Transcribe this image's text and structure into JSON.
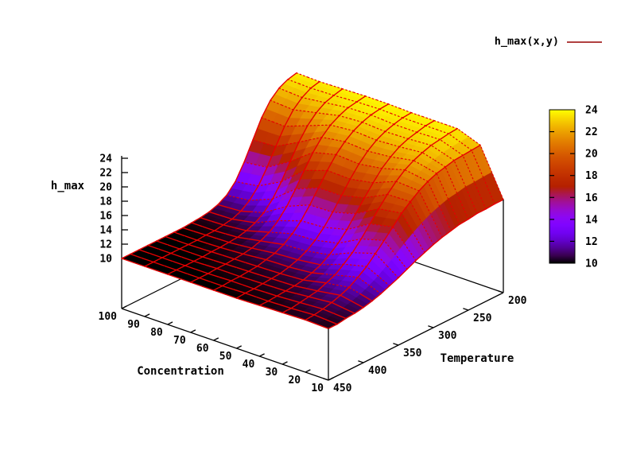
{
  "chart_data": {
    "type": "surface3d",
    "title": "",
    "legend_label": "h_max(x,y)",
    "xlabel": "Concentration",
    "ylabel": "Temperature",
    "zlabel": "h_max",
    "x_range": [
      10,
      100
    ],
    "y_range": [
      200,
      450
    ],
    "z_range": [
      10,
      24
    ],
    "x_ticks": [
      100,
      90,
      80,
      70,
      60,
      50,
      40,
      30,
      20,
      10
    ],
    "y_ticks": [
      450,
      400,
      350,
      300,
      250,
      200
    ],
    "z_ticks": [
      10,
      12,
      14,
      16,
      18,
      20,
      22,
      24
    ],
    "colorbar": {
      "min": 10,
      "max": 24,
      "ticks": [
        10,
        12,
        14,
        16,
        18,
        20,
        22,
        24
      ],
      "palette": "pm3d rgbformulae 7,5,15 (black-purple-violet-red-orange-yellow)"
    },
    "grid": {
      "concentration": [
        10,
        20,
        30,
        40,
        50,
        60,
        70,
        80,
        90,
        100
      ],
      "temperature": [
        200,
        212.5,
        225,
        237.5,
        250,
        262.5,
        275,
        287.5,
        300,
        312.5,
        325,
        337.5,
        350,
        362.5,
        375,
        387.5,
        400,
        412.5,
        425,
        437.5,
        450
      ],
      "h_max_values": [
        [
          16.0,
          16.0,
          15.9,
          15.9,
          15.7,
          15.6,
          15.3,
          15.0,
          14.6,
          14.1,
          13.6,
          13.0,
          12.4,
          11.9,
          11.4,
          11.0,
          10.7,
          10.5,
          10.4,
          10.2,
          10.2
        ],
        [
          22.5,
          22.4,
          22.3,
          22.2,
          21.9,
          21.6,
          21.1,
          20.4,
          19.5,
          18.5,
          17.2,
          15.9,
          14.7,
          13.5,
          12.6,
          11.8,
          11.3,
          10.9,
          10.6,
          10.4,
          10.3
        ],
        [
          23.7,
          23.6,
          23.4,
          23.2,
          22.8,
          22.3,
          21.6,
          20.6,
          19.4,
          18.0,
          16.5,
          15.0,
          13.7,
          12.7,
          11.8,
          11.3,
          10.8,
          10.6,
          10.4,
          10.2,
          10.2
        ],
        [
          23.7,
          23.6,
          23.3,
          23.0,
          22.5,
          21.7,
          20.7,
          19.3,
          17.8,
          16.2,
          14.6,
          13.3,
          12.3,
          11.5,
          11.0,
          10.6,
          10.4,
          10.3,
          10.2,
          10.1,
          10.1
        ],
        [
          23.7,
          23.6,
          23.3,
          22.9,
          22.3,
          21.4,
          20.2,
          18.7,
          17.0,
          15.3,
          13.8,
          12.6,
          11.7,
          11.1,
          10.7,
          10.4,
          10.3,
          10.2,
          10.1,
          10.1,
          10.0
        ],
        [
          23.8,
          23.7,
          23.5,
          23.1,
          22.5,
          21.6,
          20.4,
          18.8,
          17.0,
          15.2,
          13.6,
          12.4,
          11.5,
          10.9,
          10.6,
          10.3,
          10.2,
          10.1,
          10.1,
          10.0,
          10.0
        ],
        [
          23.8,
          23.6,
          23.4,
          22.9,
          22.2,
          21.1,
          19.6,
          17.7,
          15.7,
          13.9,
          12.5,
          11.5,
          10.9,
          10.5,
          10.3,
          10.2,
          10.1,
          10.1,
          10.0,
          10.0,
          10.0
        ],
        [
          23.7,
          23.4,
          23.0,
          22.2,
          21.0,
          19.3,
          17.2,
          15.0,
          13.2,
          11.9,
          11.1,
          10.6,
          10.3,
          10.2,
          10.1,
          10.1,
          10.0,
          10.0,
          10.0,
          10.0,
          10.0
        ],
        [
          23.6,
          23.3,
          22.6,
          21.5,
          19.8,
          17.6,
          15.3,
          13.3,
          11.9,
          11.0,
          10.5,
          10.3,
          10.1,
          10.1,
          10.0,
          10.0,
          10.0,
          10.0,
          10.0,
          10.0,
          10.0
        ],
        [
          23.7,
          23.4,
          22.8,
          21.7,
          19.9,
          17.4,
          14.9,
          12.8,
          11.5,
          10.8,
          10.4,
          10.2,
          10.1,
          10.0,
          10.0,
          10.0,
          10.0,
          10.0,
          10.0,
          10.0,
          10.0
        ]
      ]
    },
    "colors": {
      "mesh": "#e60000",
      "legend_line": "#b04040",
      "axis": "#000000",
      "background": "#ffffff"
    }
  }
}
